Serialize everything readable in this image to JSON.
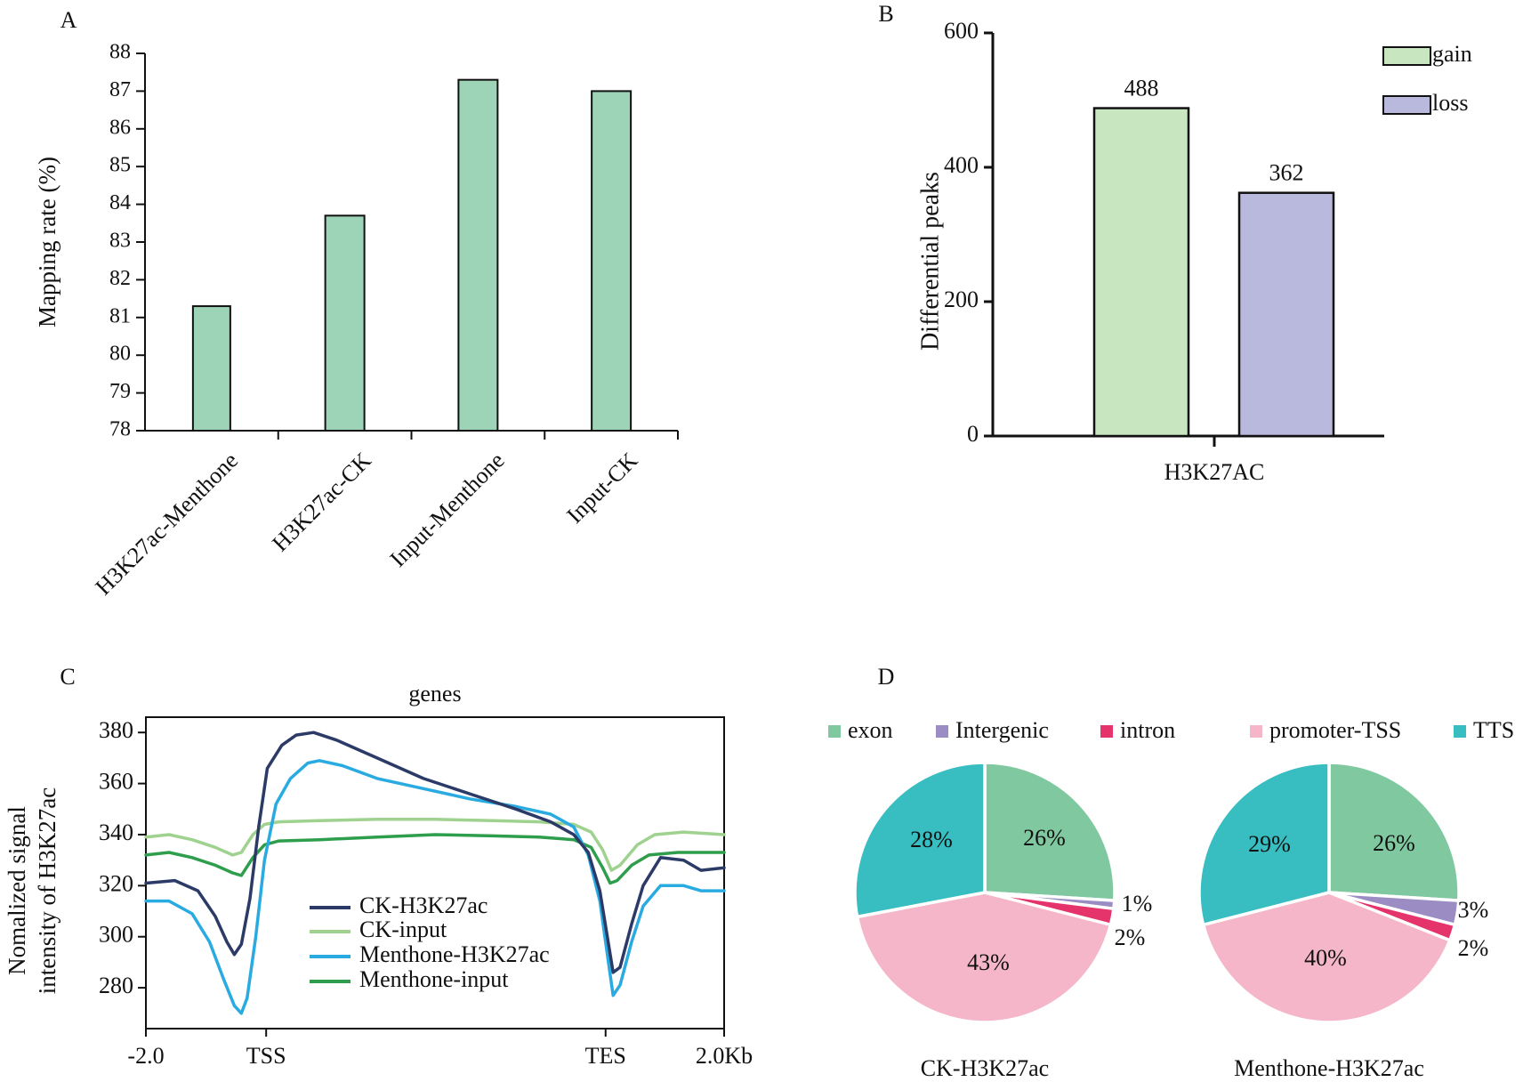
{
  "chart_data": [
    {
      "id": "A",
      "panel_label": "A",
      "type": "bar",
      "title": "",
      "xlabel": "",
      "ylabel": "Mapping rate (%)",
      "ylim": [
        78,
        88
      ],
      "yticks": [
        78,
        79,
        80,
        81,
        82,
        83,
        84,
        85,
        86,
        87,
        88
      ],
      "categories": [
        "H3K27ac-Menthone",
        "H3K27ac-CK",
        "Input-Menthone",
        "Input-CK"
      ],
      "values": [
        81.3,
        83.7,
        87.3,
        87.0
      ],
      "colors": {
        "bar": "#9dd4b8",
        "edge": "#111111"
      }
    },
    {
      "id": "B",
      "panel_label": "B",
      "type": "bar",
      "title": "",
      "xlabel": "",
      "ylabel": "Differential  peaks",
      "ylim": [
        0,
        600
      ],
      "yticks": [
        0,
        200,
        400,
        600
      ],
      "categories": [
        "H3K27AC"
      ],
      "series": [
        {
          "name": "gain",
          "values": [
            488
          ],
          "label": "488",
          "color": "#c8e6c0"
        },
        {
          "name": "loss",
          "values": [
            362
          ],
          "label": "362",
          "color": "#b9b9de"
        }
      ],
      "legend": "top-right"
    },
    {
      "id": "C",
      "panel_label": "C",
      "type": "line",
      "title": "genes",
      "xlabel": "",
      "ylabel": [
        "Nomalized signal",
        "intensity of H3K27ac"
      ],
      "ylim": [
        264,
        386
      ],
      "yticks": [
        280,
        300,
        320,
        340,
        360,
        380
      ],
      "xlim": [
        0,
        100
      ],
      "xticks": [
        {
          "x": 0,
          "label": "-2.0"
        },
        {
          "x": 20.8,
          "label": "TSS"
        },
        {
          "x": 79.5,
          "label": "TES"
        },
        {
          "x": 100,
          "label": "2.0Kb"
        }
      ],
      "series": [
        {
          "name": "CK-H3K27ac",
          "color": "#2b3a67",
          "points": [
            [
              0,
              321
            ],
            [
              5,
              322
            ],
            [
              9,
              318
            ],
            [
              12,
              308
            ],
            [
              14,
              298
            ],
            [
              15.3,
              293
            ],
            [
              16.5,
              297
            ],
            [
              18,
              315
            ],
            [
              19.5,
              343
            ],
            [
              21,
              366
            ],
            [
              23.5,
              375
            ],
            [
              26,
              379
            ],
            [
              29,
              380
            ],
            [
              33,
              377
            ],
            [
              40,
              370
            ],
            [
              48,
              362
            ],
            [
              56,
              356
            ],
            [
              64,
              350
            ],
            [
              70,
              345
            ],
            [
              74,
              340
            ],
            [
              76.5,
              333
            ],
            [
              78.5,
              318
            ],
            [
              79.8,
              300
            ],
            [
              80.8,
              286
            ],
            [
              82,
              288
            ],
            [
              84,
              305
            ],
            [
              86,
              320
            ],
            [
              89,
              331
            ],
            [
              93,
              330
            ],
            [
              96,
              326
            ],
            [
              100,
              327
            ]
          ]
        },
        {
          "name": "CK-input",
          "color": "#9fd28f",
          "points": [
            [
              0,
              339
            ],
            [
              4,
              340
            ],
            [
              8,
              338
            ],
            [
              12,
              335
            ],
            [
              15,
              332
            ],
            [
              16.5,
              333
            ],
            [
              18.5,
              340
            ],
            [
              20.5,
              344
            ],
            [
              23,
              345
            ],
            [
              30,
              345.5
            ],
            [
              40,
              346
            ],
            [
              50,
              346
            ],
            [
              60,
              345.5
            ],
            [
              68,
              345
            ],
            [
              74,
              344
            ],
            [
              77,
              341
            ],
            [
              79,
              334
            ],
            [
              80.5,
              326
            ],
            [
              82,
              328
            ],
            [
              85,
              336
            ],
            [
              88,
              340
            ],
            [
              93,
              341
            ],
            [
              100,
              340
            ]
          ]
        },
        {
          "name": "Menthone-H3K27ac",
          "color": "#29abe2",
          "points": [
            [
              0,
              314
            ],
            [
              4,
              314
            ],
            [
              8,
              309
            ],
            [
              11,
              298
            ],
            [
              13.5,
              283
            ],
            [
              15.3,
              273
            ],
            [
              16.5,
              270
            ],
            [
              17.5,
              276
            ],
            [
              19,
              300
            ],
            [
              20.5,
              330
            ],
            [
              22.5,
              352
            ],
            [
              25,
              362
            ],
            [
              28,
              368
            ],
            [
              30,
              369
            ],
            [
              34,
              367
            ],
            [
              40,
              362
            ],
            [
              48,
              358
            ],
            [
              56,
              354
            ],
            [
              64,
              351
            ],
            [
              70,
              348
            ],
            [
              74,
              343
            ],
            [
              76.5,
              332
            ],
            [
              78.5,
              314
            ],
            [
              79.8,
              293
            ],
            [
              80.8,
              277
            ],
            [
              82,
              281
            ],
            [
              84,
              298
            ],
            [
              86,
              312
            ],
            [
              89,
              320
            ],
            [
              93,
              320
            ],
            [
              96,
              318
            ],
            [
              100,
              318
            ]
          ]
        },
        {
          "name": "Menthone-input",
          "color": "#2e9e4c",
          "points": [
            [
              0,
              332
            ],
            [
              4,
              333
            ],
            [
              8,
              331
            ],
            [
              12,
              328
            ],
            [
              15,
              325
            ],
            [
              16.5,
              324
            ],
            [
              18.5,
              331
            ],
            [
              20.5,
              336
            ],
            [
              23,
              337.5
            ],
            [
              30,
              338
            ],
            [
              40,
              339
            ],
            [
              50,
              340
            ],
            [
              60,
              339.5
            ],
            [
              68,
              339
            ],
            [
              74,
              338
            ],
            [
              77,
              335
            ],
            [
              79,
              327
            ],
            [
              80.3,
              321
            ],
            [
              81.5,
              322
            ],
            [
              84,
              328
            ],
            [
              87,
              332
            ],
            [
              92,
              333
            ],
            [
              100,
              333
            ]
          ]
        }
      ]
    },
    {
      "id": "D",
      "panel_label": "D",
      "type": "pie",
      "legend_entries": [
        {
          "label": "exon",
          "color": "#7fc8a0"
        },
        {
          "label": "Intergenic",
          "color": "#9b8cc4"
        },
        {
          "label": "intron",
          "color": "#e5336b"
        },
        {
          "label": "promoter-TSS",
          "color": "#f4b6c8"
        },
        {
          "label": "TTS",
          "color": "#38bdc1"
        }
      ],
      "pies": [
        {
          "title": "CK-H3K27ac",
          "slices": [
            {
              "label": "exon",
              "value": 26,
              "text": "26%"
            },
            {
              "label": "Intergenic",
              "value": 1,
              "text": "1%"
            },
            {
              "label": "intron",
              "value": 2,
              "text": "2%"
            },
            {
              "label": "promoter-TSS",
              "value": 43,
              "text": "43%"
            },
            {
              "label": "TTS",
              "value": 28,
              "text": "28%"
            }
          ]
        },
        {
          "title": "Menthone-H3K27ac",
          "slices": [
            {
              "label": "exon",
              "value": 26,
              "text": "26%"
            },
            {
              "label": "Intergenic",
              "value": 3,
              "text": "3%"
            },
            {
              "label": "intron",
              "value": 2,
              "text": "2%"
            },
            {
              "label": "promoter-TSS",
              "value": 40,
              "text": "40%"
            },
            {
              "label": "TTS",
              "value": 29,
              "text": "29%"
            }
          ]
        }
      ]
    }
  ]
}
